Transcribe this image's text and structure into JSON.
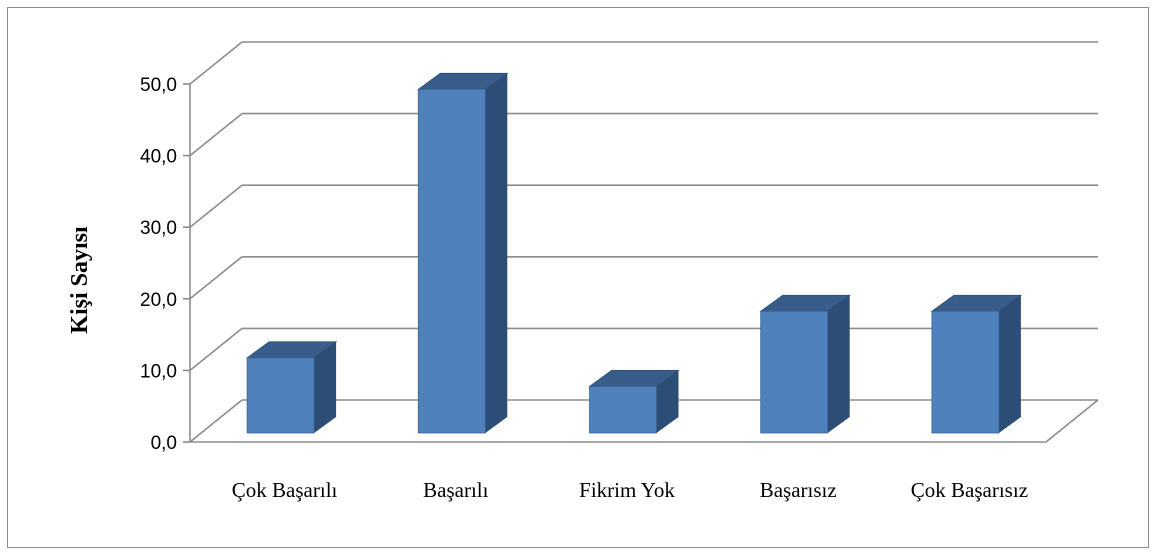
{
  "chart_data": {
    "type": "bar",
    "categories": [
      "Çok Başarılı",
      "Başarılı",
      "Fikrim Yok",
      "Başarısız",
      "Çok Başarısız"
    ],
    "values": [
      10.5,
      48.0,
      6.5,
      17.0,
      17.0
    ],
    "title": "",
    "xlabel": "",
    "ylabel": "Kişi Sayısı",
    "ylim": [
      0,
      50
    ],
    "yticks": [
      "0,0",
      "10,0",
      "20,0",
      "30,0",
      "40,0",
      "50,0"
    ],
    "grid": true,
    "legend": "none",
    "colors": {
      "bar_front": "#4f81bd",
      "bar_side": "#2c4d75",
      "bar_top": "#385d8a",
      "grid": "#8c8c8c"
    }
  }
}
